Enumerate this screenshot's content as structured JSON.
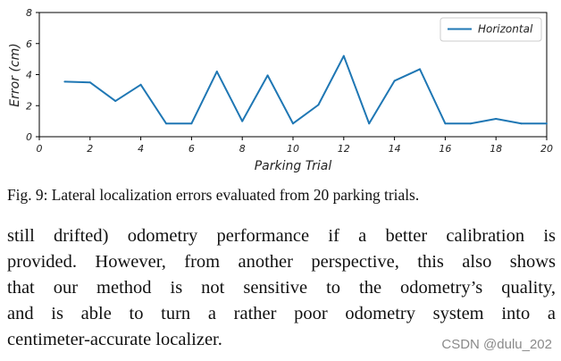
{
  "chart_data": {
    "type": "line",
    "xlabel": "Parking Trial",
    "ylabel": "Error (cm)",
    "xlim": [
      0,
      20
    ],
    "ylim": [
      0,
      8
    ],
    "xticks": [
      "0",
      "2",
      "4",
      "6",
      "8",
      "10",
      "12",
      "14",
      "16",
      "18",
      "20"
    ],
    "yticks": [
      "0",
      "2",
      "4",
      "6",
      "8"
    ],
    "grid": false,
    "legend_position": "top-right",
    "series": [
      {
        "name": "Horizontal",
        "color": "#1f77b4",
        "x": [
          1,
          2,
          3,
          4,
          5,
          6,
          7,
          8,
          9,
          10,
          11,
          12,
          13,
          14,
          15,
          16,
          17,
          18,
          19,
          20
        ],
        "y": [
          3.55,
          3.5,
          2.3,
          3.35,
          0.85,
          0.85,
          4.2,
          1.0,
          3.95,
          0.85,
          2.05,
          5.2,
          0.85,
          3.6,
          4.35,
          0.85,
          0.85,
          1.15,
          0.85,
          0.85
        ]
      }
    ]
  },
  "caption": "Fig. 9: Lateral localization errors evaluated from 20 parking trials.",
  "body_lines": [
    "still drifted) odometry performance if a better calibration is",
    "provided. However, from another perspective, this also shows",
    "that our method is not sensitive to the odometry’s quality,",
    "and is able to turn a rather poor odometry system into a",
    "centimeter-accurate localizer."
  ],
  "watermark": "CSDN @dulu_202"
}
